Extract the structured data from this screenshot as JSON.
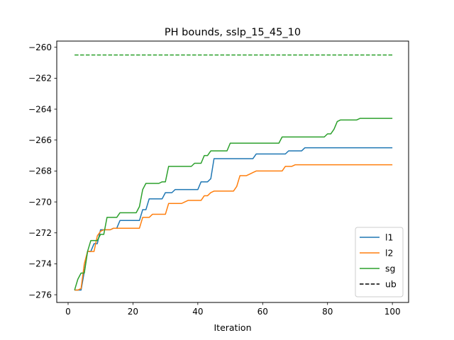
{
  "chart_data": {
    "type": "line",
    "title": "PH bounds, sslp_15_45_10",
    "xlabel": "Iteration",
    "ylabel": "",
    "xlim": [
      -3.5,
      105
    ],
    "ylim": [
      -276.5,
      -259.6
    ],
    "xticks": [
      0,
      20,
      40,
      60,
      80,
      100
    ],
    "yticks": [
      -276,
      -274,
      -272,
      -270,
      -268,
      -266,
      -264,
      -262,
      -260
    ],
    "tick_labels": {
      "x": [
        "0",
        "20",
        "40",
        "60",
        "80",
        "100"
      ],
      "y": [
        "−276",
        "−274",
        "−272",
        "−270",
        "−268",
        "−266",
        "−264",
        "−262",
        "−260"
      ]
    },
    "grid": false,
    "legend_position": "lower-right",
    "series": [
      {
        "name": "l1",
        "color": "#1f77b4",
        "dash": "solid",
        "points": [
          [
            2,
            -275.7
          ],
          [
            3,
            -275.7
          ],
          [
            4,
            -275.7
          ],
          [
            5,
            -274.5
          ],
          [
            6,
            -273.2
          ],
          [
            7,
            -273.2
          ],
          [
            8,
            -272.7
          ],
          [
            9,
            -272.7
          ],
          [
            10,
            -271.8
          ],
          [
            11,
            -271.8
          ],
          [
            12,
            -271.8
          ],
          [
            13,
            -271.8
          ],
          [
            14,
            -271.7
          ],
          [
            15,
            -271.7
          ],
          [
            16,
            -271.2
          ],
          [
            17,
            -271.2
          ],
          [
            18,
            -271.2
          ],
          [
            19,
            -271.2
          ],
          [
            20,
            -271.2
          ],
          [
            21,
            -271.2
          ],
          [
            22,
            -271.2
          ],
          [
            23,
            -270.5
          ],
          [
            24,
            -270.5
          ],
          [
            25,
            -269.8
          ],
          [
            26,
            -269.8
          ],
          [
            27,
            -269.8
          ],
          [
            28,
            -269.8
          ],
          [
            29,
            -269.8
          ],
          [
            30,
            -269.4
          ],
          [
            31,
            -269.4
          ],
          [
            32,
            -269.4
          ],
          [
            33,
            -269.2
          ],
          [
            34,
            -269.2
          ],
          [
            35,
            -269.2
          ],
          [
            36,
            -269.2
          ],
          [
            37,
            -269.2
          ],
          [
            38,
            -269.2
          ],
          [
            39,
            -269.2
          ],
          [
            40,
            -269.2
          ],
          [
            41,
            -268.7
          ],
          [
            42,
            -268.7
          ],
          [
            43,
            -268.7
          ],
          [
            44,
            -268.5
          ],
          [
            45,
            -267.2
          ],
          [
            46,
            -267.2
          ],
          [
            50,
            -267.2
          ],
          [
            57,
            -267.2
          ],
          [
            58,
            -266.9
          ],
          [
            60,
            -266.9
          ],
          [
            67,
            -266.9
          ],
          [
            68,
            -266.7
          ],
          [
            70,
            -266.7
          ],
          [
            72,
            -266.7
          ],
          [
            73,
            -266.5
          ],
          [
            80,
            -266.5
          ],
          [
            90,
            -266.5
          ],
          [
            100,
            -266.5
          ]
        ]
      },
      {
        "name": "l2",
        "color": "#ff7f0e",
        "dash": "solid",
        "points": [
          [
            2,
            -275.7
          ],
          [
            3,
            -275.7
          ],
          [
            4,
            -275.6
          ],
          [
            5,
            -274.0
          ],
          [
            6,
            -273.2
          ],
          [
            7,
            -273.2
          ],
          [
            8,
            -273.2
          ],
          [
            9,
            -272.2
          ],
          [
            10,
            -271.9
          ],
          [
            11,
            -271.8
          ],
          [
            12,
            -271.8
          ],
          [
            13,
            -271.8
          ],
          [
            14,
            -271.7
          ],
          [
            15,
            -271.7
          ],
          [
            16,
            -271.7
          ],
          [
            17,
            -271.7
          ],
          [
            18,
            -271.7
          ],
          [
            19,
            -271.7
          ],
          [
            20,
            -271.7
          ],
          [
            21,
            -271.7
          ],
          [
            22,
            -271.7
          ],
          [
            23,
            -271.0
          ],
          [
            24,
            -271.0
          ],
          [
            25,
            -271.0
          ],
          [
            26,
            -270.8
          ],
          [
            27,
            -270.8
          ],
          [
            28,
            -270.8
          ],
          [
            29,
            -270.8
          ],
          [
            30,
            -270.8
          ],
          [
            31,
            -270.1
          ],
          [
            32,
            -270.1
          ],
          [
            33,
            -270.1
          ],
          [
            34,
            -270.1
          ],
          [
            35,
            -270.1
          ],
          [
            36,
            -270.0
          ],
          [
            37,
            -269.9
          ],
          [
            38,
            -269.9
          ],
          [
            39,
            -269.9
          ],
          [
            40,
            -269.9
          ],
          [
            41,
            -269.9
          ],
          [
            42,
            -269.6
          ],
          [
            43,
            -269.6
          ],
          [
            44,
            -269.4
          ],
          [
            45,
            -269.3
          ],
          [
            46,
            -269.3
          ],
          [
            47,
            -269.3
          ],
          [
            48,
            -269.3
          ],
          [
            49,
            -269.3
          ],
          [
            50,
            -269.3
          ],
          [
            51,
            -269.3
          ],
          [
            52,
            -269.0
          ],
          [
            53,
            -268.3
          ],
          [
            54,
            -268.3
          ],
          [
            55,
            -268.3
          ],
          [
            56,
            -268.2
          ],
          [
            57,
            -268.1
          ],
          [
            58,
            -268.0
          ],
          [
            60,
            -268.0
          ],
          [
            62,
            -268.0
          ],
          [
            64,
            -268.0
          ],
          [
            66,
            -268.0
          ],
          [
            67,
            -267.7
          ],
          [
            68,
            -267.7
          ],
          [
            69,
            -267.7
          ],
          [
            70,
            -267.6
          ],
          [
            75,
            -267.6
          ],
          [
            80,
            -267.6
          ],
          [
            90,
            -267.6
          ],
          [
            100,
            -267.6
          ]
        ]
      },
      {
        "name": "sg",
        "color": "#2ca02c",
        "dash": "solid",
        "points": [
          [
            2,
            -275.7
          ],
          [
            3,
            -275.0
          ],
          [
            4,
            -274.6
          ],
          [
            5,
            -274.6
          ],
          [
            6,
            -273.2
          ],
          [
            7,
            -272.5
          ],
          [
            8,
            -272.5
          ],
          [
            9,
            -272.5
          ],
          [
            10,
            -272.1
          ],
          [
            11,
            -272.1
          ],
          [
            12,
            -271.0
          ],
          [
            13,
            -271.0
          ],
          [
            14,
            -271.0
          ],
          [
            15,
            -271.0
          ],
          [
            16,
            -270.7
          ],
          [
            17,
            -270.7
          ],
          [
            18,
            -270.7
          ],
          [
            19,
            -270.7
          ],
          [
            20,
            -270.7
          ],
          [
            21,
            -270.7
          ],
          [
            22,
            -270.3
          ],
          [
            23,
            -269.2
          ],
          [
            24,
            -268.8
          ],
          [
            25,
            -268.8
          ],
          [
            26,
            -268.8
          ],
          [
            27,
            -268.8
          ],
          [
            28,
            -268.8
          ],
          [
            29,
            -268.7
          ],
          [
            30,
            -268.7
          ],
          [
            31,
            -267.7
          ],
          [
            32,
            -267.7
          ],
          [
            33,
            -267.7
          ],
          [
            34,
            -267.7
          ],
          [
            35,
            -267.7
          ],
          [
            36,
            -267.7
          ],
          [
            37,
            -267.7
          ],
          [
            38,
            -267.7
          ],
          [
            39,
            -267.5
          ],
          [
            40,
            -267.5
          ],
          [
            41,
            -267.5
          ],
          [
            42,
            -267.0
          ],
          [
            43,
            -267.0
          ],
          [
            44,
            -266.7
          ],
          [
            45,
            -266.7
          ],
          [
            46,
            -266.7
          ],
          [
            47,
            -266.7
          ],
          [
            48,
            -266.7
          ],
          [
            49,
            -266.7
          ],
          [
            50,
            -266.2
          ],
          [
            51,
            -266.2
          ],
          [
            55,
            -266.2
          ],
          [
            60,
            -266.2
          ],
          [
            64,
            -266.2
          ],
          [
            65,
            -266.2
          ],
          [
            66,
            -265.8
          ],
          [
            67,
            -265.8
          ],
          [
            70,
            -265.8
          ],
          [
            75,
            -265.8
          ],
          [
            79,
            -265.8
          ],
          [
            80,
            -265.6
          ],
          [
            81,
            -265.6
          ],
          [
            82,
            -265.3
          ],
          [
            83,
            -264.8
          ],
          [
            84,
            -264.7
          ],
          [
            85,
            -264.7
          ],
          [
            88,
            -264.7
          ],
          [
            89,
            -264.7
          ],
          [
            90,
            -264.6
          ],
          [
            95,
            -264.6
          ],
          [
            100,
            -264.6
          ]
        ]
      },
      {
        "name": "",
        "color": "#2ca02c",
        "dash": "dashed",
        "points": [
          [
            2,
            -260.5
          ],
          [
            100,
            -260.5
          ]
        ]
      }
    ],
    "legend": [
      {
        "label": "l1",
        "color": "#1f77b4",
        "dash": "solid"
      },
      {
        "label": "l2",
        "color": "#ff7f0e",
        "dash": "solid"
      },
      {
        "label": "sg",
        "color": "#2ca02c",
        "dash": "solid"
      },
      {
        "label": "ub",
        "color": "#000000",
        "dash": "dashed"
      }
    ]
  }
}
